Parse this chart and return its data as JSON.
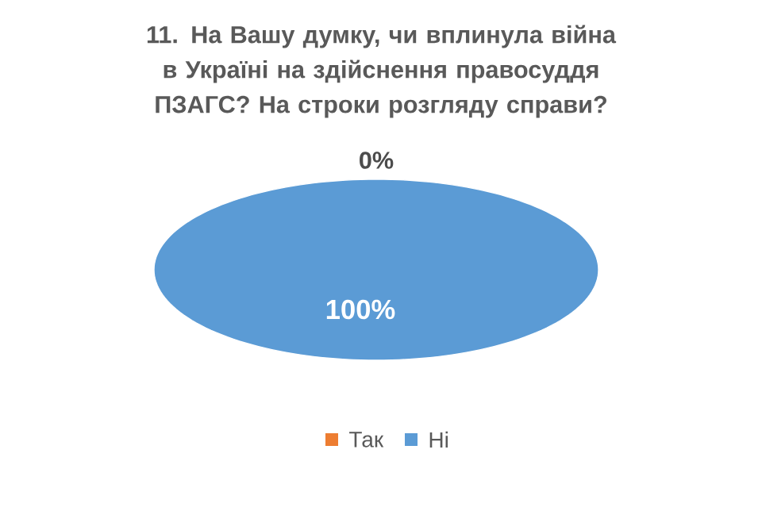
{
  "chart_data": {
    "type": "pie",
    "title": "11. На Вашу думку, чи вплинула війна в Україні на здійснення правосуддя ПЗАГС? На строки розгляду справи?",
    "categories": [
      "Так",
      "Ні"
    ],
    "values": [
      0,
      100
    ],
    "colors": [
      "#ed7d31",
      "#5b9bd5"
    ],
    "value_labels": [
      "0%",
      "100%"
    ],
    "legend": "bottom"
  }
}
